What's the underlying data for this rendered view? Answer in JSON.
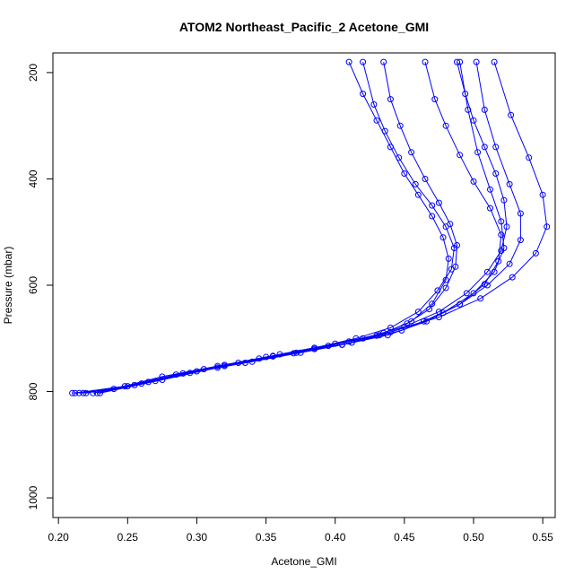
{
  "chart_data": {
    "type": "line",
    "title": "ATOM2 Northeast_Pacific_2 Acetone_GMI",
    "xlabel": "Acetone_GMI",
    "ylabel": "Pressure (mbar)",
    "xlim": [
      0.196,
      0.559
    ],
    "ylim": [
      1037,
      163
    ],
    "y_reversed": true,
    "x_ticks": [
      "0.20",
      "0.25",
      "0.30",
      "0.35",
      "0.40",
      "0.45",
      "0.50",
      "0.55"
    ],
    "y_ticks": [
      "200",
      "400",
      "600",
      "800",
      "1000"
    ],
    "grid": false,
    "marker": "open-circle",
    "colors": {
      "series": "#0000ff",
      "axes": "#000000"
    },
    "series": [
      {
        "x": [
          0.21,
          0.24,
          0.275,
          0.315,
          0.35,
          0.385,
          0.41,
          0.435,
          0.455,
          0.47,
          0.48,
          0.482,
          0.478,
          0.47,
          0.46,
          0.45,
          0.44,
          0.43,
          0.42,
          0.41
        ],
        "y": [
          803,
          795,
          772,
          752,
          735,
          720,
          706,
          690,
          668,
          635,
          590,
          550,
          510,
          470,
          430,
          390,
          340,
          290,
          240,
          180
        ]
      },
      {
        "x": [
          0.215,
          0.25,
          0.285,
          0.32,
          0.355,
          0.385,
          0.415,
          0.44,
          0.46,
          0.474,
          0.484,
          0.486,
          0.48,
          0.47,
          0.458,
          0.446,
          0.436,
          0.428,
          0.42
        ],
        "y": [
          803,
          790,
          768,
          750,
          733,
          718,
          700,
          680,
          650,
          610,
          570,
          530,
          490,
          450,
          410,
          360,
          310,
          260,
          180
        ]
      },
      {
        "x": [
          0.22,
          0.26,
          0.3,
          0.34,
          0.375,
          0.405,
          0.43,
          0.452,
          0.468,
          0.48,
          0.487,
          0.488,
          0.483,
          0.475,
          0.465,
          0.455,
          0.447,
          0.44,
          0.435
        ],
        "y": [
          803,
          785,
          762,
          744,
          727,
          712,
          695,
          672,
          645,
          605,
          565,
          525,
          485,
          445,
          400,
          350,
          300,
          250,
          180
        ]
      },
      {
        "x": [
          0.225,
          0.265,
          0.305,
          0.345,
          0.385,
          0.42,
          0.45,
          0.475,
          0.495,
          0.51,
          0.52,
          0.524,
          0.522,
          0.516,
          0.508,
          0.5,
          0.494,
          0.488
        ],
        "y": [
          803,
          782,
          758,
          738,
          718,
          700,
          678,
          650,
          615,
          575,
          535,
          490,
          440,
          390,
          340,
          290,
          240,
          180
        ]
      },
      {
        "x": [
          0.23,
          0.275,
          0.32,
          0.36,
          0.4,
          0.44,
          0.475,
          0.505,
          0.528,
          0.545,
          0.553,
          0.55,
          0.54,
          0.527,
          0.515
        ],
        "y": [
          803,
          778,
          752,
          730,
          710,
          688,
          660,
          625,
          585,
          540,
          490,
          430,
          360,
          280,
          180
        ]
      },
      {
        "x": [
          0.218,
          0.255,
          0.295,
          0.335,
          0.37,
          0.405,
          0.438,
          0.466,
          0.49,
          0.508,
          0.518,
          0.52,
          0.512,
          0.5,
          0.49,
          0.48,
          0.472,
          0.465
        ],
        "y": [
          803,
          788,
          765,
          746,
          728,
          712,
          694,
          668,
          636,
          598,
          555,
          505,
          455,
          405,
          355,
          300,
          250,
          180
        ]
      },
      {
        "x": [
          0.212,
          0.248,
          0.29,
          0.33,
          0.372,
          0.412,
          0.448,
          0.478,
          0.5,
          0.515,
          0.522,
          0.52,
          0.512,
          0.503,
          0.496,
          0.49
        ],
        "y": [
          803,
          790,
          766,
          746,
          727,
          708,
          685,
          652,
          615,
          575,
          530,
          480,
          420,
          350,
          270,
          180
        ]
      },
      {
        "x": [
          0.228,
          0.27,
          0.315,
          0.355,
          0.395,
          0.432,
          0.464,
          0.49,
          0.51,
          0.526,
          0.534,
          0.534,
          0.526,
          0.516,
          0.508,
          0.502
        ],
        "y": [
          803,
          780,
          755,
          734,
          714,
          694,
          668,
          636,
          600,
          560,
          515,
          465,
          410,
          340,
          270,
          180
        ]
      }
    ]
  }
}
